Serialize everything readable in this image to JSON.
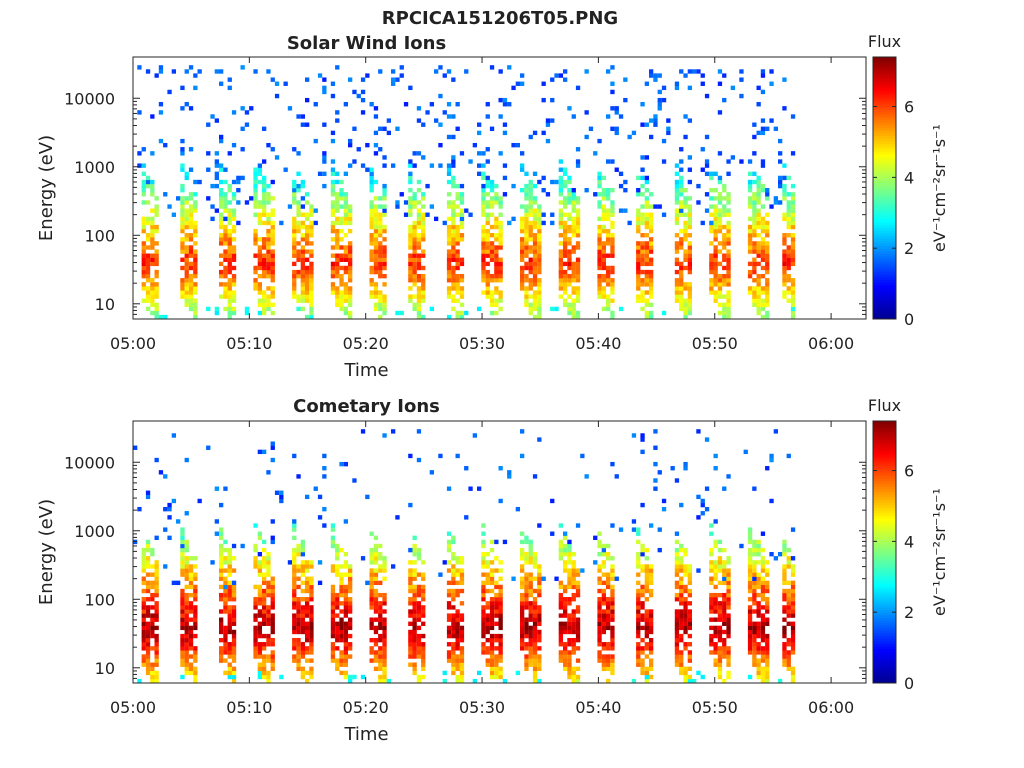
{
  "figure": {
    "title": "RPCICA151206T05.PNG"
  },
  "colors": {
    "colormap": [
      "#00008f",
      "#0000ff",
      "#0080ff",
      "#00ffff",
      "#80ff80",
      "#ffff00",
      "#ff8000",
      "#ff0000",
      "#800000"
    ],
    "axes_stroke": "#262626"
  },
  "chart_data": [
    {
      "type": "heatmap",
      "title": "Solar Wind Ions",
      "xlabel": "Time",
      "ylabel": "Energy (eV)",
      "x_ticks": [
        "05:00",
        "05:10",
        "05:20",
        "05:30",
        "05:40",
        "05:50",
        "06:00"
      ],
      "x_tick_minutes": [
        0,
        10,
        20,
        30,
        40,
        50,
        60
      ],
      "xlim_minutes": [
        0,
        63
      ],
      "y_scale": "log",
      "y_ticks": [
        10,
        100,
        1000,
        10000
      ],
      "y_tick_labels": [
        "10",
        "100",
        "1000",
        "10000"
      ],
      "ylim": [
        6,
        40000
      ],
      "colorbar": {
        "title": "Flux",
        "label": "eV⁻¹cm⁻²sr⁻¹s⁻¹",
        "ticks": [
          0,
          2,
          4,
          6
        ],
        "range": [
          0,
          7.4
        ]
      },
      "data_end_minutes": 57,
      "sweep_start_minutes": [
        0.5,
        3.8,
        7.1,
        10.3,
        13.6,
        16.9,
        20.1,
        23.4,
        26.7,
        29.9,
        33.2,
        36.5,
        39.7,
        43.0,
        46.3,
        49.5,
        52.8,
        55.5
      ],
      "peak_energy_eV": 38,
      "peak_flux": 6.2,
      "background_level": 1.5
    },
    {
      "type": "heatmap",
      "title": "Cometary Ions",
      "xlabel": "Time",
      "ylabel": "Energy (eV)",
      "x_ticks": [
        "05:00",
        "05:10",
        "05:20",
        "05:30",
        "05:40",
        "05:50",
        "06:00"
      ],
      "x_tick_minutes": [
        0,
        10,
        20,
        30,
        40,
        50,
        60
      ],
      "xlim_minutes": [
        0,
        63
      ],
      "y_scale": "log",
      "y_ticks": [
        10,
        100,
        1000,
        10000
      ],
      "y_tick_labels": [
        "10",
        "100",
        "1000",
        "10000"
      ],
      "ylim": [
        6,
        40000
      ],
      "colorbar": {
        "title": "Flux",
        "label": "eV⁻¹cm⁻²sr⁻¹s⁻¹",
        "ticks": [
          0,
          2,
          4,
          6
        ],
        "range": [
          0,
          7.4
        ]
      },
      "data_end_minutes": 57,
      "sweep_start_minutes": [
        0.5,
        3.8,
        7.1,
        10.3,
        13.6,
        16.9,
        20.1,
        23.4,
        26.7,
        29.9,
        33.2,
        36.5,
        39.7,
        43.0,
        46.3,
        49.5,
        52.8,
        55.5
      ],
      "peak_energy_eV": 38,
      "peak_flux": 7.1,
      "background_level": 0.6
    }
  ]
}
